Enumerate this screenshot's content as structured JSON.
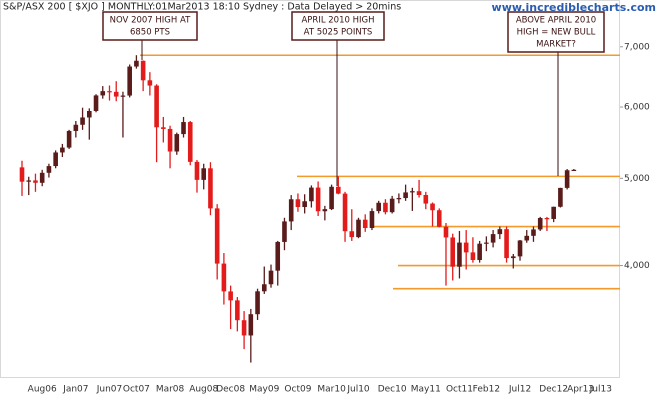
{
  "chart_data": {
    "type": "candlestick",
    "title": "S&P/ASX 200 [ $XJO ] MONTHLY:01Mar2013 18:10 Sydney : Data Delayed > 20mins",
    "source": "www.incrediblecharts.com",
    "log_scale": true,
    "up_color": "#5a1b1b",
    "down_color": "#e41b1b",
    "level_color": "#f39a2b",
    "ylim": [
      3000,
      7890
    ],
    "yticks": [
      {
        "value": 4000,
        "label": "4,000"
      },
      {
        "value": 5000,
        "label": "5,000"
      },
      {
        "value": 6000,
        "label": "6,000"
      },
      {
        "value": 7000,
        "label": "7,000"
      }
    ],
    "categories": [
      null,
      null,
      null,
      "Aug06",
      null,
      null,
      null,
      null,
      "Jan07",
      null,
      null,
      null,
      null,
      "Jun07",
      null,
      null,
      null,
      "Oct07",
      null,
      null,
      null,
      null,
      "Mar08",
      null,
      null,
      null,
      null,
      "Aug08",
      null,
      null,
      null,
      "Dec08",
      null,
      null,
      null,
      null,
      "May09",
      null,
      null,
      null,
      null,
      "Oct09",
      null,
      null,
      null,
      null,
      "Mar10",
      null,
      null,
      null,
      "Jul10",
      null,
      null,
      null,
      null,
      "Dec10",
      null,
      null,
      null,
      null,
      "May11",
      null,
      null,
      null,
      null,
      "Oct11",
      null,
      null,
      null,
      "Feb12",
      null,
      null,
      null,
      null,
      "Jul12",
      null,
      null,
      null,
      null,
      "Dec12",
      null,
      null,
      null,
      "Apr13",
      null,
      null,
      "Jul13"
    ],
    "open": [
      5142,
      4957,
      4973,
      4943,
      5071,
      5159,
      5342,
      5409,
      5644,
      5734,
      5842,
      5940,
      6181,
      6249,
      6238,
      6163,
      6179,
      6655,
      6754,
      6425,
      6339,
      5697,
      5673,
      5355,
      5599,
      5774,
      5215,
      4980,
      5130,
      4630,
      4020,
      3744,
      3659,
      3478,
      3345,
      3532,
      3745,
      3813,
      3948,
      4249,
      4478,
      4739,
      4646,
      4715,
      4883,
      4596,
      4621,
      4893,
      4808,
      4367,
      4302,
      4498,
      4403,
      4598,
      4697,
      4585,
      4746,
      4754,
      4823,
      4838,
      4791,
      4687,
      4608,
      4417,
      4298,
      3988,
      4242,
      4137,
      4057,
      4230,
      4242,
      4335,
      4390,
      4077,
      4095,
      4265,
      4316,
      4387,
      4517,
      4506,
      4649,
      4879,
      5104,
      null,
      null,
      null,
      null
    ],
    "high": [
      5230,
      5020,
      5060,
      5110,
      5190,
      5370,
      5460,
      5660,
      5790,
      5990,
      5980,
      6200,
      6330,
      6340,
      6410,
      6240,
      6690,
      6851,
      6760,
      6560,
      6360,
      5850,
      5720,
      5620,
      5850,
      5790,
      5240,
      5190,
      5210,
      4680,
      4130,
      3800,
      3690,
      3560,
      3580,
      3770,
      3990,
      4010,
      4260,
      4520,
      4790,
      4810,
      4800,
      4910,
      4960,
      4660,
      4920,
      5025,
      4830,
      4620,
      4520,
      4560,
      4630,
      4720,
      4740,
      4780,
      4810,
      4920,
      4880,
      4980,
      4830,
      4700,
      4630,
      4460,
      4340,
      4370,
      4380,
      4300,
      4260,
      4310,
      4380,
      4420,
      4420,
      4120,
      4270,
      4380,
      4420,
      4530,
      4530,
      4650,
      4880,
      5120,
      5120,
      null,
      null,
      null,
      null
    ],
    "low": [
      4780,
      4790,
      4830,
      4900,
      5010,
      5130,
      5280,
      5390,
      5550,
      5660,
      5520,
      5920,
      6130,
      6100,
      6090,
      5550,
      6150,
      6620,
      6250,
      6180,
      5210,
      5480,
      5130,
      5310,
      5550,
      5170,
      4820,
      4860,
      4550,
      3860,
      3620,
      3400,
      3380,
      3230,
      3121,
      3480,
      3720,
      3780,
      3800,
      4160,
      4380,
      4590,
      4570,
      4640,
      4540,
      4490,
      4610,
      4800,
      4250,
      4260,
      4290,
      4360,
      4380,
      4570,
      4560,
      4570,
      4690,
      4720,
      4600,
      4760,
      4620,
      4420,
      4410,
      3800,
      3850,
      3870,
      3960,
      4030,
      4030,
      4150,
      4190,
      4280,
      4030,
      3970,
      4050,
      4240,
      4250,
      4370,
      4370,
      4470,
      4640,
      4860,
      5100,
      null,
      null,
      null,
      null
    ],
    "close": [
      4957,
      4973,
      4943,
      5071,
      5159,
      5342,
      5409,
      5644,
      5734,
      5842,
      5940,
      6181,
      6249,
      6238,
      6163,
      6179,
      6655,
      6754,
      6425,
      6339,
      5697,
      5673,
      5355,
      5599,
      5774,
      5215,
      4980,
      5130,
      4630,
      4020,
      3744,
      3659,
      3478,
      3345,
      3532,
      3745,
      3813,
      3948,
      4249,
      4478,
      4739,
      4646,
      4715,
      4883,
      4596,
      4621,
      4893,
      4808,
      4367,
      4302,
      4498,
      4403,
      4598,
      4697,
      4585,
      4746,
      4754,
      4823,
      4838,
      4791,
      4687,
      4608,
      4417,
      4298,
      3988,
      4242,
      4137,
      4057,
      4230,
      4242,
      4335,
      4390,
      4077,
      4095,
      4265,
      4316,
      4387,
      4517,
      4506,
      4649,
      4879,
      5104,
      5110,
      null,
      null,
      null,
      null
    ],
    "levels": [
      6850,
      5025,
      4420,
      4000,
      3770
    ],
    "annotations": [
      {
        "lines": [
          "NOV 2007 HIGH AT",
          "6850 PTS"
        ]
      },
      {
        "lines": [
          "APRIL 2010 HIGH",
          "AT 5025 POINTS"
        ]
      },
      {
        "lines": [
          "ABOVE APRIL 2010",
          "HIGH = NEW BULL",
          "MARKET?"
        ]
      }
    ]
  }
}
